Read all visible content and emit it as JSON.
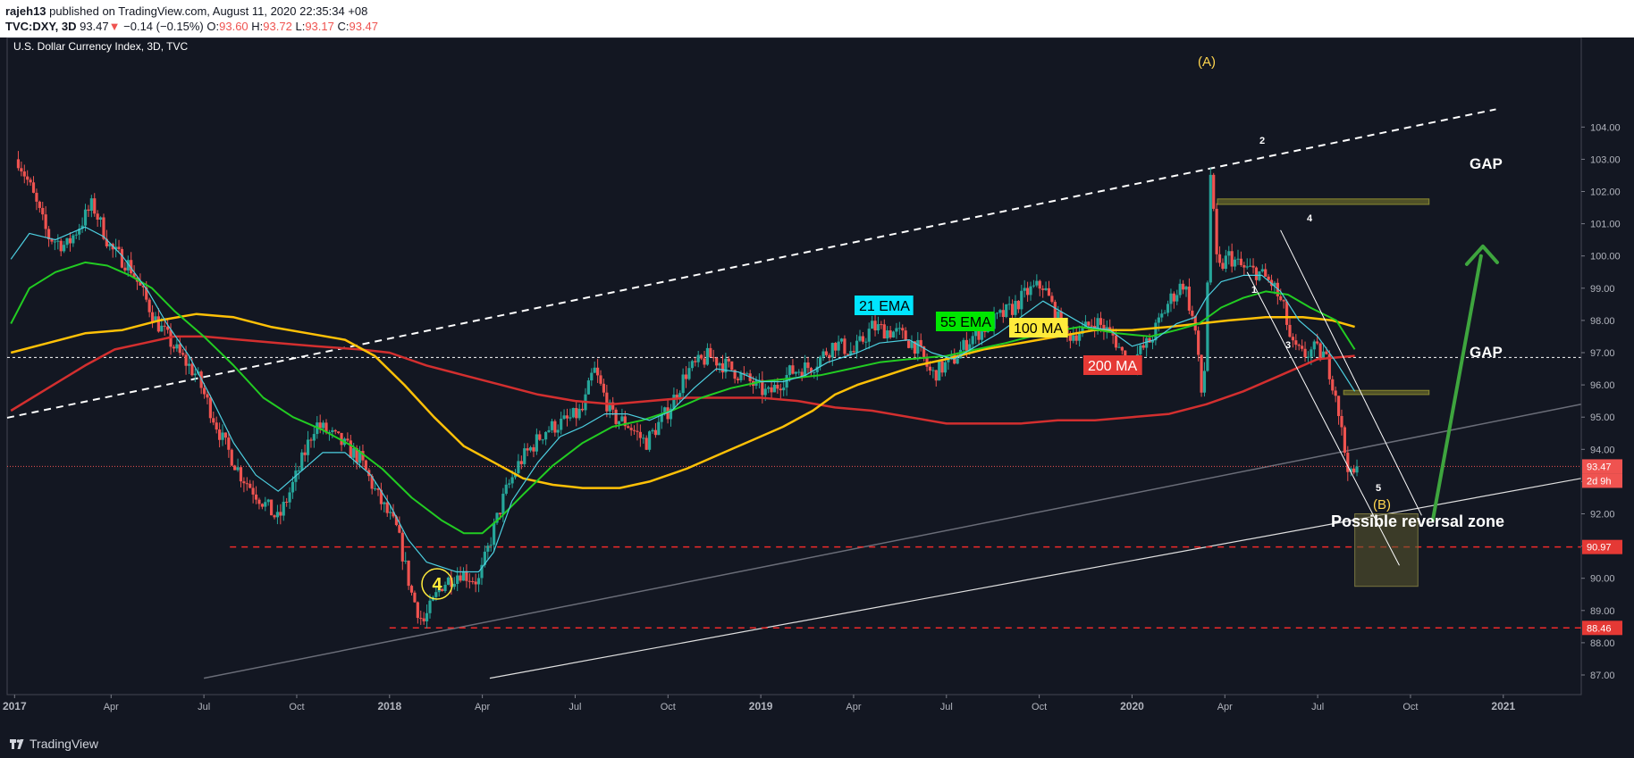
{
  "header": {
    "author": "rajeh13",
    "published_text": "published on TradingView.com, August 11, 2020 22:35:34 +08",
    "symbol": "TVC:DXY, 3D",
    "price": "93.47",
    "change": "−0.14 (−0.15%)",
    "o_label": "O:",
    "o_value": "93.60",
    "h_label": "H:",
    "h_value": "93.72",
    "l_label": "L:",
    "l_value": "93.17",
    "c_label": "C:",
    "c_value": "93.47"
  },
  "footer": {
    "brand": "TradingView",
    "logo_icon": "tradingview-logo-icon"
  },
  "chart_data": {
    "type": "candlestick",
    "title": "U.S. Dollar Currency Index, 3D, TVC",
    "ylim": [
      86.8,
      104.4
    ],
    "y_ticks": [
      "87.00",
      "88.00",
      "89.00",
      "90.00",
      "91.00",
      "92.00",
      "93.00",
      "94.00",
      "95.00",
      "96.00",
      "97.00",
      "98.00",
      "99.00",
      "100.00",
      "101.00",
      "102.00",
      "103.00",
      "104.00"
    ],
    "x_ticks": [
      {
        "label": "2017",
        "t": 2016.99
      },
      {
        "label": "Apr",
        "t": 2017.25
      },
      {
        "label": "Jul",
        "t": 2017.5
      },
      {
        "label": "Oct",
        "t": 2017.75
      },
      {
        "label": "2018",
        "t": 2018.0
      },
      {
        "label": "Apr",
        "t": 2018.25
      },
      {
        "label": "Jul",
        "t": 2018.5
      },
      {
        "label": "Oct",
        "t": 2018.75
      },
      {
        "label": "2019",
        "t": 2019.0
      },
      {
        "label": "Apr",
        "t": 2019.25
      },
      {
        "label": "Jul",
        "t": 2019.5
      },
      {
        "label": "Oct",
        "t": 2019.75
      },
      {
        "label": "2020",
        "t": 2020.0
      },
      {
        "label": "Apr",
        "t": 2020.25
      },
      {
        "label": "Jul",
        "t": 2020.5
      },
      {
        "label": "Oct",
        "t": 2020.75
      },
      {
        "label": "2021",
        "t": 2021.0
      }
    ],
    "xlim": [
      2016.97,
      2021.21
    ],
    "price_path": [
      [
        2017.0,
        103.0
      ],
      [
        2017.03,
        102.2
      ],
      [
        2017.08,
        100.6
      ],
      [
        2017.13,
        100.3
      ],
      [
        2017.2,
        101.6
      ],
      [
        2017.25,
        100.2
      ],
      [
        2017.3,
        99.7
      ],
      [
        2017.37,
        98.0
      ],
      [
        2017.43,
        97.0
      ],
      [
        2017.48,
        96.3
      ],
      [
        2017.55,
        94.3
      ],
      [
        2017.6,
        93.2
      ],
      [
        2017.65,
        92.5
      ],
      [
        2017.7,
        91.8
      ],
      [
        2017.75,
        93.2
      ],
      [
        2017.8,
        94.8
      ],
      [
        2017.86,
        94.3
      ],
      [
        2017.92,
        93.7
      ],
      [
        2017.97,
        92.5
      ],
      [
        2018.02,
        91.5
      ],
      [
        2018.06,
        89.5
      ],
      [
        2018.09,
        88.6
      ],
      [
        2018.14,
        89.8
      ],
      [
        2018.19,
        90.2
      ],
      [
        2018.24,
        89.9
      ],
      [
        2018.28,
        91.5
      ],
      [
        2018.31,
        92.6
      ],
      [
        2018.35,
        93.6
      ],
      [
        2018.42,
        94.6
      ],
      [
        2018.48,
        94.9
      ],
      [
        2018.52,
        95.2
      ],
      [
        2018.55,
        96.5
      ],
      [
        2018.6,
        95.0
      ],
      [
        2018.64,
        94.8
      ],
      [
        2018.69,
        94.2
      ],
      [
        2018.75,
        95.2
      ],
      [
        2018.8,
        96.4
      ],
      [
        2018.86,
        96.9
      ],
      [
        2018.92,
        96.5
      ],
      [
        2018.97,
        96.1
      ],
      [
        2019.02,
        95.7
      ],
      [
        2019.08,
        96.4
      ],
      [
        2019.14,
        96.6
      ],
      [
        2019.2,
        97.3
      ],
      [
        2019.25,
        97.0
      ],
      [
        2019.3,
        97.8
      ],
      [
        2019.37,
        97.6
      ],
      [
        2019.42,
        97.2
      ],
      [
        2019.46,
        96.3
      ],
      [
        2019.52,
        96.8
      ],
      [
        2019.57,
        97.5
      ],
      [
        2019.63,
        98.0
      ],
      [
        2019.68,
        98.4
      ],
      [
        2019.72,
        98.9
      ],
      [
        2019.76,
        99.1
      ],
      [
        2019.82,
        97.5
      ],
      [
        2019.87,
        97.7
      ],
      [
        2019.9,
        98.0
      ],
      [
        2019.95,
        97.5
      ],
      [
        2019.99,
        96.6
      ],
      [
        2020.05,
        97.4
      ],
      [
        2020.1,
        98.6
      ],
      [
        2020.14,
        99.2
      ],
      [
        2020.17,
        97.7
      ],
      [
        2020.19,
        95.4
      ],
      [
        2020.2,
        97.5
      ],
      [
        2020.21,
        102.8
      ],
      [
        2020.23,
        99.5
      ],
      [
        2020.26,
        100.0
      ],
      [
        2020.3,
        99.6
      ],
      [
        2020.34,
        99.5
      ],
      [
        2020.38,
        99.1
      ],
      [
        2020.41,
        98.3
      ],
      [
        2020.43,
        97.2
      ],
      [
        2020.46,
        96.9
      ],
      [
        2020.49,
        97.1
      ],
      [
        2020.52,
        96.9
      ],
      [
        2020.55,
        95.7
      ],
      [
        2020.57,
        94.1
      ],
      [
        2020.59,
        93.1
      ],
      [
        2020.61,
        93.47
      ]
    ],
    "ma_21": [
      [
        2016.98,
        99.9
      ],
      [
        2017.03,
        100.7
      ],
      [
        2017.1,
        100.5
      ],
      [
        2017.18,
        100.9
      ],
      [
        2017.23,
        100.6
      ],
      [
        2017.28,
        100.0
      ],
      [
        2017.35,
        98.9
      ],
      [
        2017.4,
        97.9
      ],
      [
        2017.46,
        96.9
      ],
      [
        2017.52,
        95.6
      ],
      [
        2017.58,
        94.2
      ],
      [
        2017.64,
        93.2
      ],
      [
        2017.7,
        92.7
      ],
      [
        2017.76,
        93.3
      ],
      [
        2017.82,
        93.9
      ],
      [
        2017.88,
        93.9
      ],
      [
        2017.95,
        93.2
      ],
      [
        2018.0,
        92.3
      ],
      [
        2018.05,
        91.2
      ],
      [
        2018.1,
        90.5
      ],
      [
        2018.18,
        90.2
      ],
      [
        2018.24,
        90.2
      ],
      [
        2018.28,
        90.8
      ],
      [
        2018.33,
        92.4
      ],
      [
        2018.4,
        93.6
      ],
      [
        2018.46,
        94.4
      ],
      [
        2018.52,
        94.7
      ],
      [
        2018.58,
        95.1
      ],
      [
        2018.64,
        95.1
      ],
      [
        2018.7,
        94.9
      ],
      [
        2018.76,
        95.2
      ],
      [
        2018.82,
        95.9
      ],
      [
        2018.88,
        96.5
      ],
      [
        2018.94,
        96.4
      ],
      [
        2019.0,
        96.1
      ],
      [
        2019.06,
        96.1
      ],
      [
        2019.12,
        96.3
      ],
      [
        2019.18,
        96.7
      ],
      [
        2019.26,
        97.0
      ],
      [
        2019.32,
        97.3
      ],
      [
        2019.4,
        97.4
      ],
      [
        2019.46,
        97.0
      ],
      [
        2019.52,
        96.8
      ],
      [
        2019.58,
        97.2
      ],
      [
        2019.64,
        97.6
      ],
      [
        2019.7,
        98.1
      ],
      [
        2019.76,
        98.6
      ],
      [
        2019.82,
        98.2
      ],
      [
        2019.88,
        97.8
      ],
      [
        2019.94,
        97.7
      ],
      [
        2020.0,
        97.2
      ],
      [
        2020.06,
        97.4
      ],
      [
        2020.12,
        97.9
      ],
      [
        2020.17,
        98.1
      ],
      [
        2020.2,
        98.7
      ],
      [
        2020.24,
        99.2
      ],
      [
        2020.3,
        99.4
      ],
      [
        2020.35,
        99.4
      ],
      [
        2020.4,
        98.9
      ],
      [
        2020.45,
        98.0
      ],
      [
        2020.5,
        97.5
      ],
      [
        2020.55,
        96.7
      ],
      [
        2020.6,
        95.8
      ]
    ],
    "ema_55": [
      [
        2016.98,
        97.9
      ],
      [
        2017.03,
        99.0
      ],
      [
        2017.1,
        99.5
      ],
      [
        2017.18,
        99.8
      ],
      [
        2017.24,
        99.7
      ],
      [
        2017.3,
        99.4
      ],
      [
        2017.36,
        99.0
      ],
      [
        2017.42,
        98.3
      ],
      [
        2017.5,
        97.5
      ],
      [
        2017.58,
        96.6
      ],
      [
        2017.66,
        95.6
      ],
      [
        2017.74,
        95.0
      ],
      [
        2017.82,
        94.6
      ],
      [
        2017.9,
        94.1
      ],
      [
        2017.98,
        93.4
      ],
      [
        2018.06,
        92.5
      ],
      [
        2018.14,
        91.8
      ],
      [
        2018.2,
        91.4
      ],
      [
        2018.25,
        91.4
      ],
      [
        2018.3,
        91.9
      ],
      [
        2018.36,
        92.6
      ],
      [
        2018.44,
        93.5
      ],
      [
        2018.52,
        94.2
      ],
      [
        2018.6,
        94.7
      ],
      [
        2018.68,
        94.9
      ],
      [
        2018.76,
        95.2
      ],
      [
        2018.84,
        95.6
      ],
      [
        2018.92,
        95.9
      ],
      [
        2019.0,
        96.1
      ],
      [
        2019.08,
        96.2
      ],
      [
        2019.16,
        96.3
      ],
      [
        2019.24,
        96.5
      ],
      [
        2019.32,
        96.7
      ],
      [
        2019.4,
        96.8
      ],
      [
        2019.5,
        96.9
      ],
      [
        2019.58,
        97.1
      ],
      [
        2019.66,
        97.3
      ],
      [
        2019.76,
        97.6
      ],
      [
        2019.86,
        97.8
      ],
      [
        2019.96,
        97.6
      ],
      [
        2020.05,
        97.5
      ],
      [
        2020.12,
        97.7
      ],
      [
        2020.18,
        97.9
      ],
      [
        2020.24,
        98.4
      ],
      [
        2020.3,
        98.7
      ],
      [
        2020.36,
        98.9
      ],
      [
        2020.42,
        98.8
      ],
      [
        2020.48,
        98.4
      ],
      [
        2020.55,
        98.0
      ],
      [
        2020.6,
        97.1
      ]
    ],
    "ma_100": [
      [
        2016.98,
        97.0
      ],
      [
        2017.08,
        97.3
      ],
      [
        2017.18,
        97.6
      ],
      [
        2017.28,
        97.7
      ],
      [
        2017.38,
        98.0
      ],
      [
        2017.48,
        98.2
      ],
      [
        2017.58,
        98.1
      ],
      [
        2017.68,
        97.8
      ],
      [
        2017.78,
        97.6
      ],
      [
        2017.88,
        97.4
      ],
      [
        2017.96,
        96.9
      ],
      [
        2018.04,
        96.0
      ],
      [
        2018.12,
        95.0
      ],
      [
        2018.2,
        94.1
      ],
      [
        2018.28,
        93.6
      ],
      [
        2018.36,
        93.1
      ],
      [
        2018.44,
        92.9
      ],
      [
        2018.52,
        92.8
      ],
      [
        2018.62,
        92.8
      ],
      [
        2018.7,
        93.0
      ],
      [
        2018.8,
        93.4
      ],
      [
        2018.9,
        93.9
      ],
      [
        2018.98,
        94.3
      ],
      [
        2019.06,
        94.7
      ],
      [
        2019.14,
        95.2
      ],
      [
        2019.2,
        95.7
      ],
      [
        2019.26,
        96.0
      ],
      [
        2019.34,
        96.3
      ],
      [
        2019.42,
        96.6
      ],
      [
        2019.5,
        96.8
      ],
      [
        2019.6,
        97.1
      ],
      [
        2019.7,
        97.3
      ],
      [
        2019.8,
        97.5
      ],
      [
        2019.9,
        97.7
      ],
      [
        2020.0,
        97.7
      ],
      [
        2020.1,
        97.8
      ],
      [
        2020.18,
        97.9
      ],
      [
        2020.26,
        98.0
      ],
      [
        2020.36,
        98.1
      ],
      [
        2020.46,
        98.1
      ],
      [
        2020.54,
        98.0
      ],
      [
        2020.6,
        97.8
      ]
    ],
    "ma_200": [
      [
        2016.98,
        95.2
      ],
      [
        2017.08,
        95.9
      ],
      [
        2017.18,
        96.6
      ],
      [
        2017.26,
        97.1
      ],
      [
        2017.34,
        97.3
      ],
      [
        2017.42,
        97.5
      ],
      [
        2017.5,
        97.5
      ],
      [
        2017.6,
        97.4
      ],
      [
        2017.7,
        97.3
      ],
      [
        2017.8,
        97.2
      ],
      [
        2017.92,
        97.1
      ],
      [
        2018.0,
        97.0
      ],
      [
        2018.1,
        96.6
      ],
      [
        2018.2,
        96.3
      ],
      [
        2018.3,
        96.0
      ],
      [
        2018.4,
        95.7
      ],
      [
        2018.5,
        95.5
      ],
      [
        2018.6,
        95.4
      ],
      [
        2018.7,
        95.5
      ],
      [
        2018.8,
        95.6
      ],
      [
        2018.9,
        95.6
      ],
      [
        2019.0,
        95.6
      ],
      [
        2019.1,
        95.5
      ],
      [
        2019.2,
        95.3
      ],
      [
        2019.3,
        95.2
      ],
      [
        2019.4,
        95.0
      ],
      [
        2019.5,
        94.8
      ],
      [
        2019.6,
        94.8
      ],
      [
        2019.7,
        94.8
      ],
      [
        2019.8,
        94.9
      ],
      [
        2019.9,
        94.9
      ],
      [
        2020.0,
        95.0
      ],
      [
        2020.1,
        95.1
      ],
      [
        2020.2,
        95.4
      ],
      [
        2020.3,
        95.8
      ],
      [
        2020.4,
        96.3
      ],
      [
        2020.5,
        96.8
      ],
      [
        2020.6,
        96.9
      ]
    ],
    "markers": {
      "last_price": "93.47",
      "countdown": "2d 9h",
      "level_1": "90.97",
      "level_2": "88.46"
    },
    "labels": {
      "ema21": "21 EMA",
      "ema55": "55 EMA",
      "ma100": "100 MA",
      "ma200": "200 MA",
      "gap_top": "GAP",
      "gap_mid": "GAP",
      "wave_A": "(A)",
      "wave_B": "(B)",
      "wave_4": "4",
      "reversal": "Possible reversal zone",
      "w1": "1",
      "w2": "2",
      "w3": "3",
      "w4": "4",
      "w5": "5"
    },
    "colors": {
      "up": "#26a69a",
      "down": "#ef5350",
      "ma21": "#4dd0e1",
      "ema55": "#22cc22",
      "ma100": "#ffc107",
      "ma200": "#d32f2f",
      "arrow": "#3ea53e"
    }
  }
}
